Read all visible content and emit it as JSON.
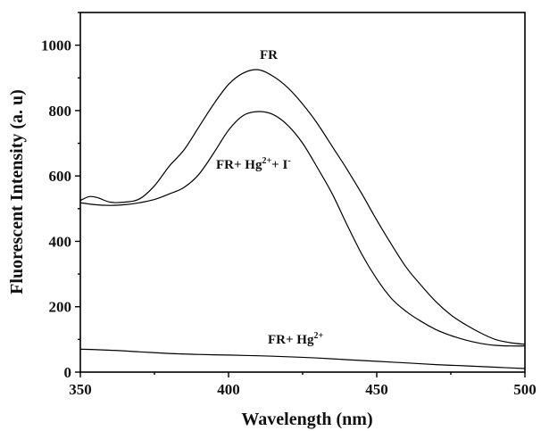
{
  "chart_data": {
    "type": "line",
    "xlabel": "Wavelength (nm)",
    "ylabel": "Fluorescent Intensity (a. u)",
    "xlim": [
      350,
      500
    ],
    "ylim": [
      0,
      1100
    ],
    "x_ticks": [
      350,
      400,
      450,
      500
    ],
    "y_ticks": [
      0,
      200,
      400,
      600,
      800,
      1000
    ],
    "grid": false,
    "legend": "none",
    "series": [
      {
        "name": "FR",
        "label_parts": [
          "FR"
        ],
        "x": [
          350,
          353,
          356,
          360,
          365,
          370,
          375,
          380,
          385,
          390,
          395,
          400,
          405,
          410,
          415,
          420,
          425,
          430,
          435,
          440,
          445,
          450,
          455,
          460,
          465,
          470,
          475,
          480,
          485,
          490,
          495,
          500
        ],
        "y": [
          525,
          537,
          533,
          520,
          520,
          530,
          570,
          630,
          680,
          750,
          820,
          880,
          915,
          925,
          905,
          870,
          820,
          760,
          690,
          620,
          545,
          465,
          390,
          320,
          265,
          215,
          175,
          145,
          120,
          100,
          90,
          85
        ]
      },
      {
        "name": "FR+ Hg2+ + I-",
        "label_parts": [
          "FR+ Hg",
          "2+",
          "+ I",
          "-"
        ],
        "x": [
          350,
          355,
          360,
          365,
          370,
          375,
          380,
          385,
          390,
          395,
          400,
          405,
          410,
          415,
          420,
          425,
          430,
          435,
          440,
          445,
          450,
          455,
          460,
          465,
          470,
          475,
          480,
          485,
          490,
          495,
          500
        ],
        "y": [
          518,
          512,
          510,
          512,
          518,
          528,
          545,
          565,
          605,
          670,
          740,
          785,
          797,
          788,
          755,
          700,
          625,
          545,
          450,
          360,
          285,
          225,
          185,
          155,
          130,
          112,
          98,
          88,
          82,
          80,
          80
        ]
      },
      {
        "name": "FR+ Hg2+",
        "label_parts": [
          "FR+ Hg",
          "2+"
        ],
        "x": [
          350,
          360,
          370,
          380,
          390,
          400,
          410,
          420,
          430,
          440,
          450,
          460,
          470,
          480,
          490,
          500
        ],
        "y": [
          70,
          67,
          62,
          57,
          54,
          52,
          50,
          47,
          43,
          38,
          33,
          28,
          23,
          19,
          15,
          11
        ]
      }
    ]
  }
}
